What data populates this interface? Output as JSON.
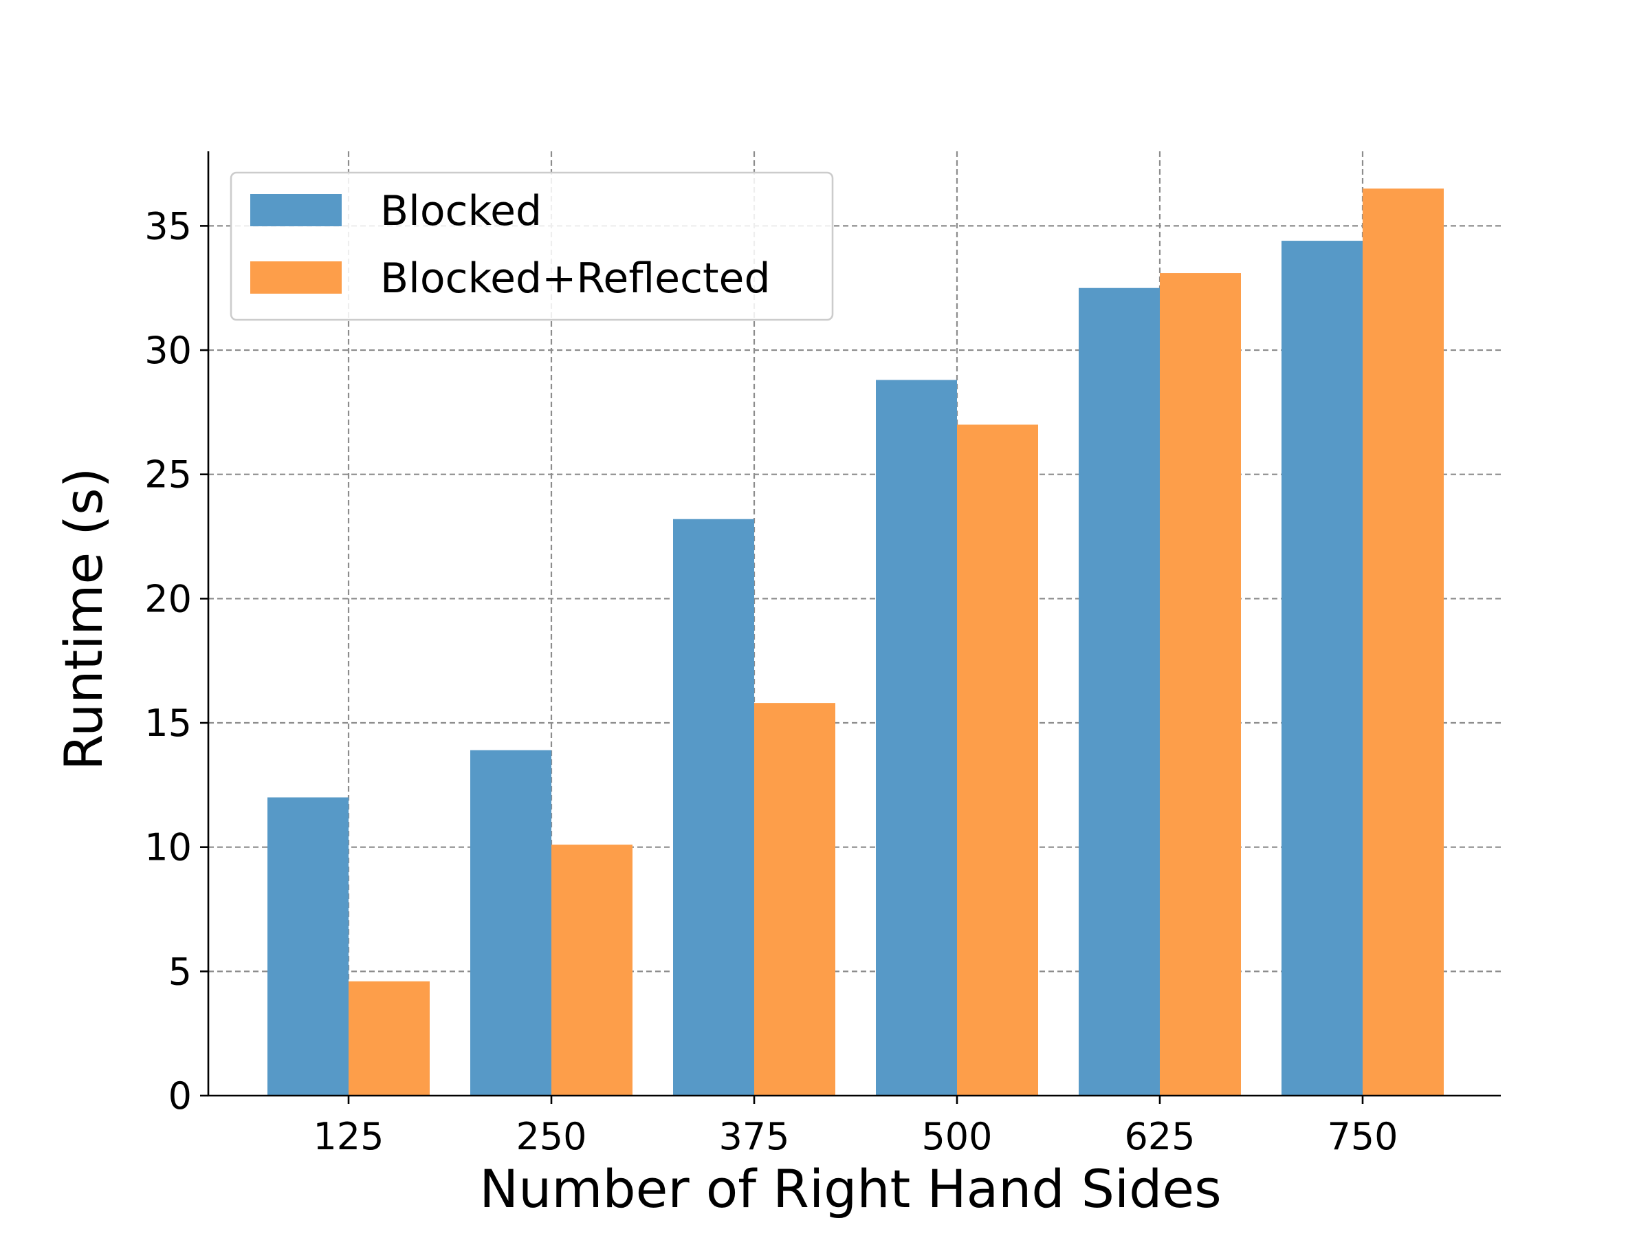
{
  "chart_data": {
    "type": "bar",
    "categories": [
      "125",
      "250",
      "375",
      "500",
      "625",
      "750"
    ],
    "series": [
      {
        "name": "Blocked",
        "values": [
          12.0,
          13.9,
          23.2,
          28.8,
          32.5,
          34.4
        ],
        "color": "#5799c7"
      },
      {
        "name": "Blocked+Reflected",
        "values": [
          4.6,
          10.1,
          15.8,
          27.0,
          33.1,
          36.5
        ],
        "color": "#fd9e4a"
      }
    ],
    "title": "",
    "xlabel": "Number of Right Hand Sides",
    "ylabel": "Runtime (s)",
    "ylim": [
      0,
      38
    ],
    "yticks": [
      "0",
      "5",
      "10",
      "15",
      "20",
      "25",
      "30",
      "35"
    ],
    "grid": true,
    "legend_position": "top-left"
  }
}
